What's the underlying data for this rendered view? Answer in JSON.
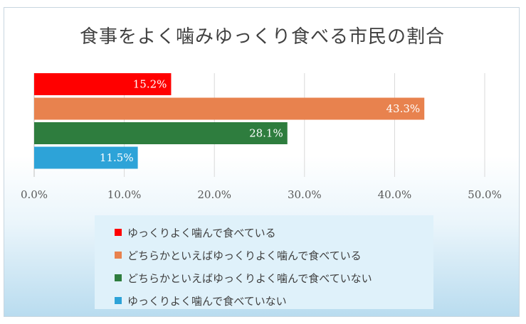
{
  "chart_data": {
    "type": "bar",
    "orientation": "horizontal",
    "title": "食事をよく噛みゆっくり食べる市民の割合",
    "xlabel": "",
    "ylabel": "",
    "xlim": [
      0,
      50
    ],
    "x_ticks": [
      "0.0%",
      "10.0%",
      "20.0%",
      "30.0%",
      "40.0%",
      "50.0%"
    ],
    "grid": true,
    "legend_position": "bottom",
    "series": [
      {
        "name": "ゆっくりよく噛んで食べている",
        "value": 15.2,
        "label": "15.2%",
        "color": "#ff0000"
      },
      {
        "name": "どちらかといえばゆっくりよく噛んで食べている",
        "value": 43.3,
        "label": "43.3%",
        "color": "#e8824e"
      },
      {
        "name": "どちらかといえばゆっくりよく噛んで食べていない",
        "value": 28.1,
        "label": "28.1%",
        "color": "#2e7d3e"
      },
      {
        "name": "ゆっくりよく噛んで食べていない",
        "value": 11.5,
        "label": "11.5%",
        "color": "#2da3d8"
      }
    ]
  }
}
